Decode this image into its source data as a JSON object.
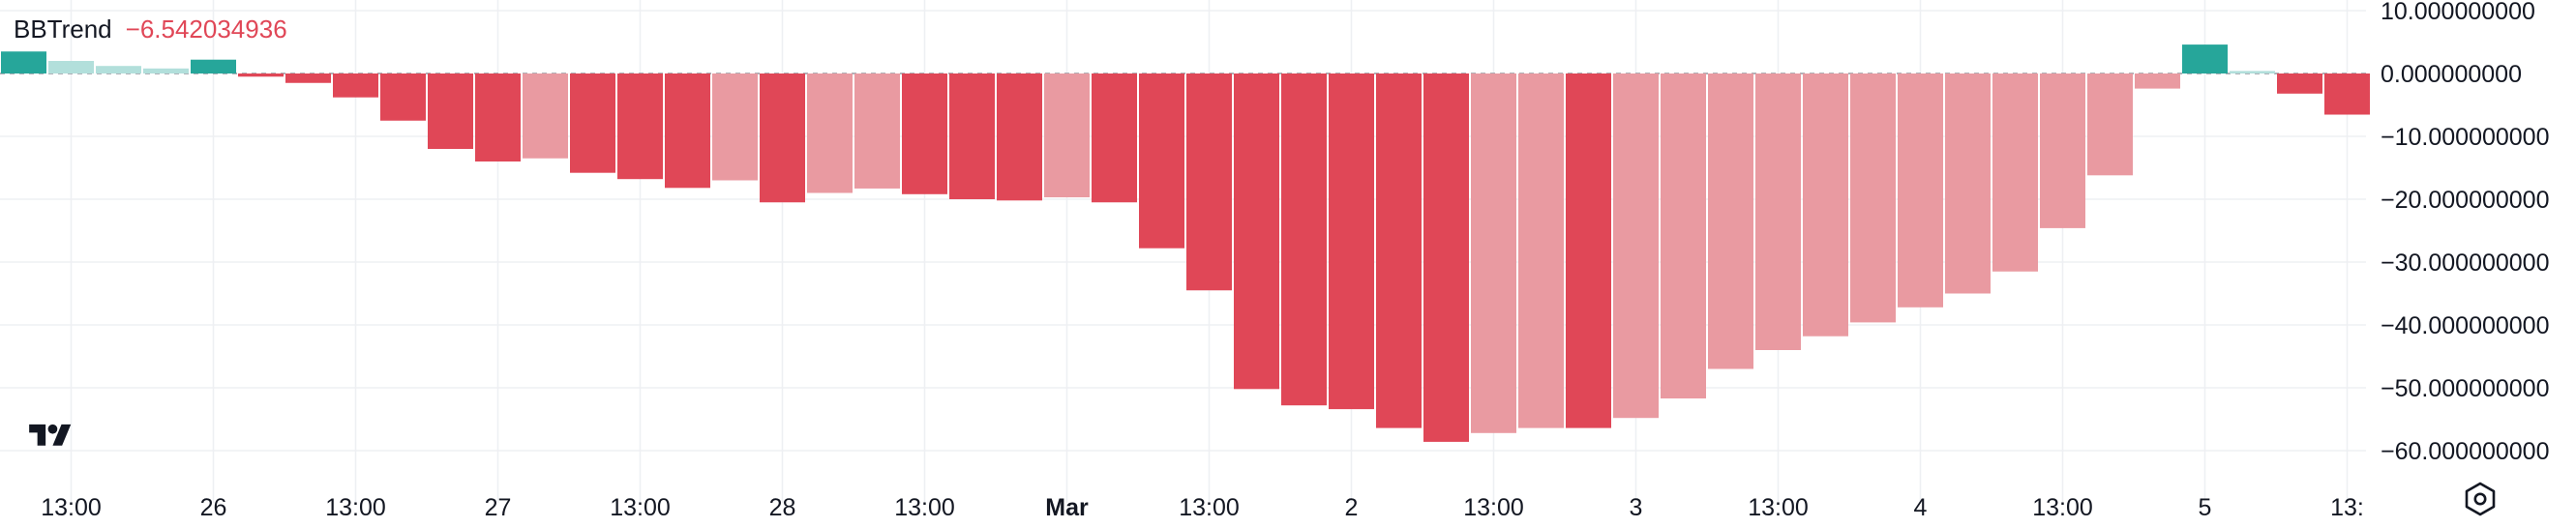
{
  "indicator": {
    "name": "BBTrend",
    "value": "−6.542034936"
  },
  "icons": {
    "logo": "tradingview-logo",
    "settings": "settings-hex-icon"
  },
  "colors": {
    "up_strong": "#26a69a",
    "up_weak": "#b2dfdb",
    "down_strong": "#e04757",
    "down_weak": "#e99aa1",
    "grid": "#eef0f3",
    "axis_text": "#131722"
  },
  "chart_data": {
    "type": "bar",
    "title": "BBTrend",
    "xlabel": "",
    "ylabel": "",
    "ylim": [
      -65,
      15
    ],
    "grid": true,
    "zero_line": "dashed",
    "y_ticks": [
      10,
      0,
      -10,
      -20,
      -30,
      -40,
      -50,
      -60
    ],
    "y_tick_labels": [
      "10.000000000",
      "0.000000000",
      "−10.000000000",
      "−20.000000000",
      "−30.000000000",
      "−40.000000000",
      "−50.000000000",
      "−60.000000000"
    ],
    "x_tick_labels": [
      "13:00",
      "26",
      "13:00",
      "27",
      "13:00",
      "28",
      "13:00",
      "Mar",
      "13:00",
      "2",
      "13:00",
      "3",
      "13:00",
      "4",
      "13:00",
      "5",
      "13:"
    ],
    "x_tick_bar_index": [
      1,
      4,
      7,
      10,
      13,
      16,
      19,
      22,
      25,
      28,
      31,
      34,
      37,
      40,
      43,
      46,
      49
    ],
    "values": [
      3.5,
      2.0,
      1.2,
      0.8,
      2.2,
      -0.5,
      -1.5,
      -3.8,
      -7.5,
      -12,
      -14,
      -13.5,
      -15.8,
      -16.8,
      -18.2,
      -17,
      -20.5,
      -19,
      -18.3,
      -19.2,
      -20,
      -20.2,
      -19.7,
      -20.5,
      -27.8,
      -34.5,
      -50.2,
      -52.8,
      -53.4,
      -56.4,
      -58.6,
      -57.2,
      -56.4,
      -56.4,
      -54.8,
      -51.7,
      -47,
      -44,
      -41.8,
      -39.6,
      -37.2,
      -35,
      -31.5,
      -24.6,
      -16.2,
      -2.4,
      4.6,
      0.4,
      -3.2,
      -6.542034936
    ],
    "bar_styles": [
      "up_strong",
      "up_weak",
      "up_weak",
      "up_weak",
      "up_strong",
      "down_strong",
      "down_strong",
      "down_strong",
      "down_strong",
      "down_strong",
      "down_strong",
      "down_weak",
      "down_strong",
      "down_strong",
      "down_strong",
      "down_weak",
      "down_strong",
      "down_weak",
      "down_weak",
      "down_strong",
      "down_strong",
      "down_strong",
      "down_weak",
      "down_strong",
      "down_strong",
      "down_strong",
      "down_strong",
      "down_strong",
      "down_strong",
      "down_strong",
      "down_strong",
      "down_weak",
      "down_weak",
      "down_strong",
      "down_weak",
      "down_weak",
      "down_weak",
      "down_weak",
      "down_weak",
      "down_weak",
      "down_weak",
      "down_weak",
      "down_weak",
      "down_weak",
      "down_weak",
      "down_weak",
      "up_strong",
      "up_weak",
      "down_strong",
      "down_strong"
    ]
  }
}
